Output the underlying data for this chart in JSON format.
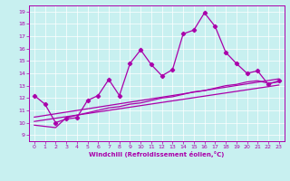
{
  "xlabel": "Windchill (Refroidissement éolien,°C)",
  "bg_color": "#c8f0f0",
  "line_color": "#aa00aa",
  "grid_color": "#ffffff",
  "xlim": [
    -0.5,
    23.5
  ],
  "ylim": [
    8.5,
    19.5
  ],
  "xticks": [
    0,
    1,
    2,
    3,
    4,
    5,
    6,
    7,
    8,
    9,
    10,
    11,
    12,
    13,
    14,
    15,
    16,
    17,
    18,
    19,
    20,
    21,
    22,
    23
  ],
  "yticks": [
    9,
    10,
    11,
    12,
    13,
    14,
    15,
    16,
    17,
    18,
    19
  ],
  "line1_x": [
    0,
    1,
    2,
    3,
    4,
    5,
    6,
    7,
    8,
    9,
    10,
    11,
    12,
    13,
    14,
    15,
    16,
    17,
    18,
    19,
    20,
    21,
    22,
    23
  ],
  "line1_y": [
    12.2,
    11.5,
    10.0,
    10.3,
    10.4,
    11.8,
    12.2,
    13.5,
    12.2,
    14.8,
    15.9,
    14.7,
    13.8,
    14.3,
    17.2,
    17.5,
    18.9,
    17.8,
    15.7,
    14.8,
    14.0,
    14.2,
    13.1,
    13.4
  ],
  "line2_x": [
    0,
    2,
    3,
    4,
    5,
    6,
    7,
    8,
    9,
    10,
    11,
    12,
    13,
    14,
    15,
    16,
    17,
    18,
    19,
    20,
    21,
    22,
    23
  ],
  "line2_y": [
    9.8,
    9.6,
    10.4,
    10.6,
    10.8,
    11.0,
    11.2,
    11.3,
    11.5,
    11.6,
    11.8,
    12.0,
    12.1,
    12.3,
    12.5,
    12.6,
    12.8,
    13.0,
    13.1,
    13.3,
    13.4,
    13.2,
    13.3
  ],
  "line3_x": [
    0,
    23
  ],
  "line3_y": [
    10.1,
    13.05
  ],
  "line4_x": [
    0,
    23
  ],
  "line4_y": [
    10.45,
    13.55
  ]
}
